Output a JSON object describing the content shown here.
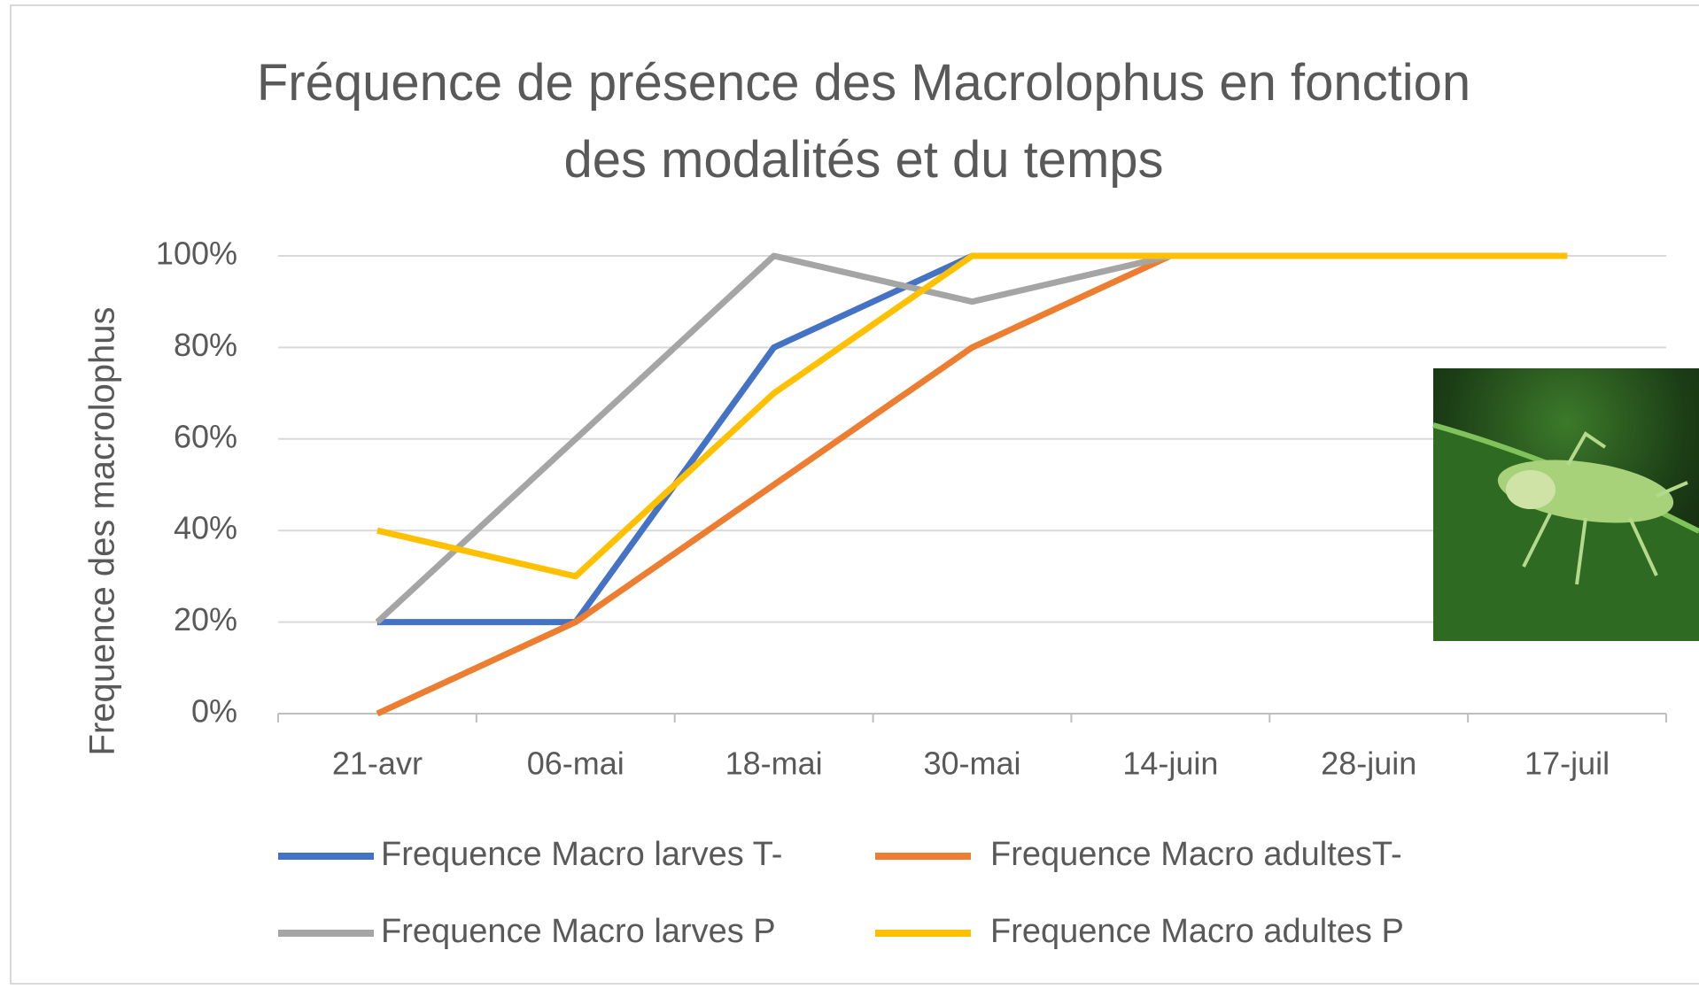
{
  "chart_data": {
    "type": "line",
    "title": "Fréquence de présence des Macrolophus en fonction des modalités et du temps",
    "y_label": "Frequence des macrolophus",
    "categories": [
      "21-avr",
      "06-mai",
      "18-mai",
      "30-mai",
      "14-juin",
      "28-juin",
      "17-juil"
    ],
    "series": [
      {
        "name": "Frequence Macro larves T-",
        "color": "#4472c4",
        "values": [
          20,
          20,
          80,
          100,
          100,
          100,
          100
        ]
      },
      {
        "name": "Frequence Macro adultesT-",
        "color": "#ed7d31",
        "values": [
          0,
          20,
          50,
          80,
          100,
          100,
          100
        ]
      },
      {
        "name": "Frequence Macro larves P",
        "color": "#a5a5a5",
        "values": [
          20,
          60,
          100,
          90,
          100,
          100,
          100
        ]
      },
      {
        "name": "Frequence Macro adultes P",
        "color": "#ffc000",
        "values": [
          40,
          30,
          70,
          100,
          100,
          100,
          100
        ]
      }
    ],
    "ylim": [
      0,
      100
    ],
    "yticks": [
      {
        "value": 0,
        "label": "0%"
      },
      {
        "value": 20,
        "label": "20%"
      },
      {
        "value": 40,
        "label": "40%"
      },
      {
        "value": 60,
        "label": "60%"
      },
      {
        "value": 80,
        "label": "80%"
      },
      {
        "value": 100,
        "label": "100%"
      }
    ],
    "grid": true
  }
}
